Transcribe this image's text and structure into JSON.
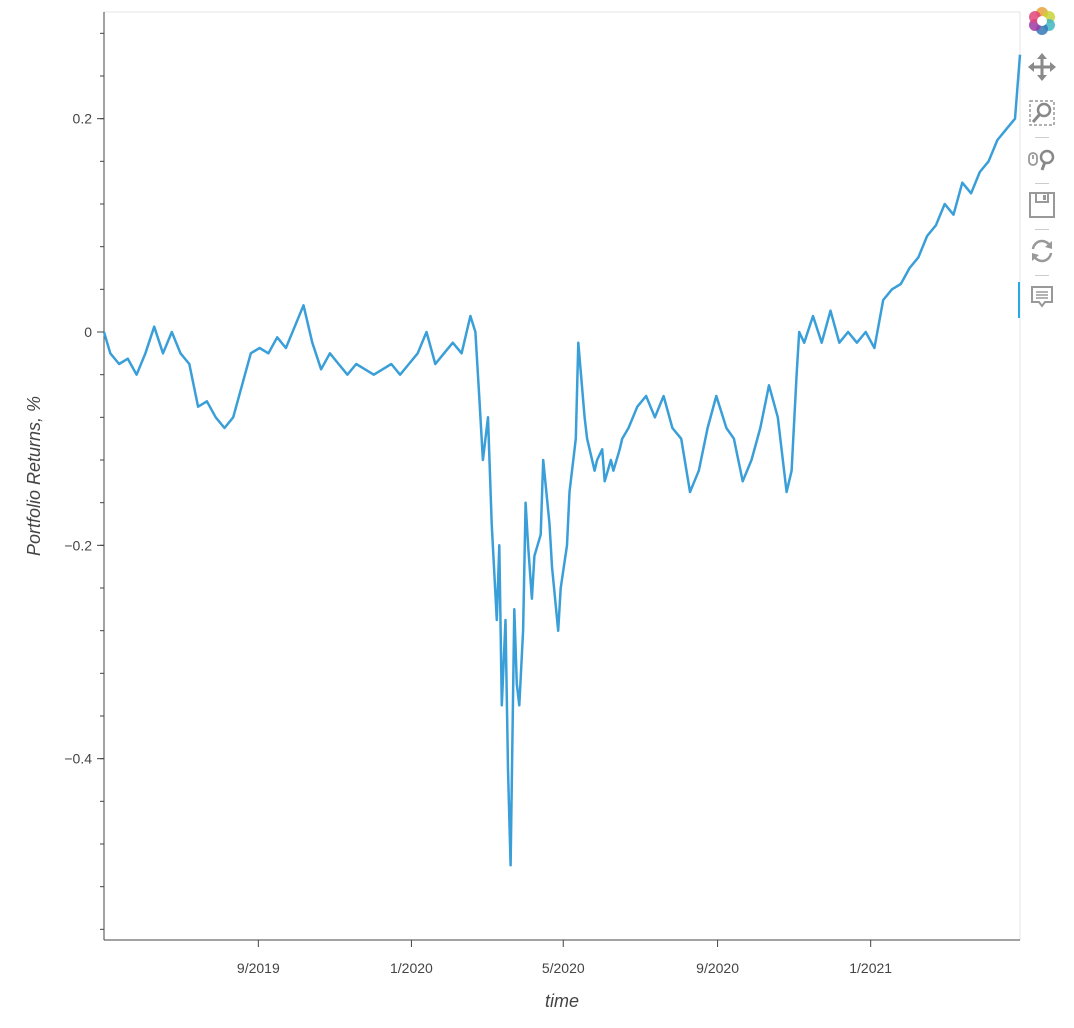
{
  "chart_data": {
    "type": "line",
    "title": "",
    "xlabel": "time",
    "ylabel": "Portfolio Returns, %",
    "x_axis_type": "datetime",
    "xlim": [
      "2019-05-01",
      "2021-04-30"
    ],
    "ylim": [
      -0.57,
      0.3
    ],
    "x_ticks": [
      {
        "date": "2019-09-01",
        "label": "9/2019"
      },
      {
        "date": "2020-01-01",
        "label": "1/2020"
      },
      {
        "date": "2020-05-01",
        "label": "5/2020"
      },
      {
        "date": "2020-09-01",
        "label": "9/2020"
      },
      {
        "date": "2021-01-01",
        "label": "1/2021"
      }
    ],
    "y_ticks": [
      {
        "value": 0.2,
        "label": "0.2"
      },
      {
        "value": 0,
        "label": "0"
      },
      {
        "value": -0.2,
        "label": "−0.2"
      },
      {
        "value": -0.4,
        "label": "−0.4"
      }
    ],
    "y_minor_step": 0.04,
    "grid": false,
    "line_color": "#3a9fd8",
    "series": [
      {
        "x": [
          "2019-05-01",
          "2019-05-06",
          "2019-05-13",
          "2019-05-20",
          "2019-05-27",
          "2019-06-03",
          "2019-06-10",
          "2019-06-17",
          "2019-06-24",
          "2019-07-01",
          "2019-07-08",
          "2019-07-15",
          "2019-07-22",
          "2019-07-29",
          "2019-08-05",
          "2019-08-12",
          "2019-08-19",
          "2019-08-26",
          "2019-09-02",
          "2019-09-09",
          "2019-09-16",
          "2019-09-23",
          "2019-09-30",
          "2019-10-07",
          "2019-10-14",
          "2019-10-21",
          "2019-10-28",
          "2019-11-04",
          "2019-11-11",
          "2019-11-18",
          "2019-11-25",
          "2019-12-02",
          "2019-12-09",
          "2019-12-16",
          "2019-12-23",
          "2019-12-30",
          "2020-01-06",
          "2020-01-13",
          "2020-01-20",
          "2020-01-27",
          "2020-02-03",
          "2020-02-10",
          "2020-02-17",
          "2020-02-21",
          "2020-02-24",
          "2020-02-27",
          "2020-03-02",
          "2020-03-05",
          "2020-03-09",
          "2020-03-11",
          "2020-03-13",
          "2020-03-16",
          "2020-03-18",
          "2020-03-20",
          "2020-03-23",
          "2020-03-25",
          "2020-03-27",
          "2020-03-30",
          "2020-04-01",
          "2020-04-03",
          "2020-04-06",
          "2020-04-08",
          "2020-04-13",
          "2020-04-15",
          "2020-04-20",
          "2020-04-22",
          "2020-04-27",
          "2020-04-29",
          "2020-05-04",
          "2020-05-06",
          "2020-05-11",
          "2020-05-13",
          "2020-05-18",
          "2020-05-20",
          "2020-05-26",
          "2020-05-28",
          "2020-06-01",
          "2020-06-03",
          "2020-06-08",
          "2020-06-10",
          "2020-06-15",
          "2020-06-17",
          "2020-06-22",
          "2020-06-29",
          "2020-07-06",
          "2020-07-13",
          "2020-07-20",
          "2020-07-27",
          "2020-08-03",
          "2020-08-10",
          "2020-08-17",
          "2020-08-24",
          "2020-08-31",
          "2020-09-08",
          "2020-09-14",
          "2020-09-21",
          "2020-09-28",
          "2020-10-05",
          "2020-10-12",
          "2020-10-19",
          "2020-10-26",
          "2020-10-30",
          "2020-11-03",
          "2020-11-05",
          "2020-11-09",
          "2020-11-16",
          "2020-11-23",
          "2020-11-30",
          "2020-12-07",
          "2020-12-14",
          "2020-12-21",
          "2020-12-28",
          "2021-01-04",
          "2021-01-11",
          "2021-01-18",
          "2021-01-25",
          "2021-02-01",
          "2021-02-08",
          "2021-02-15",
          "2021-02-22",
          "2021-03-01",
          "2021-03-08",
          "2021-03-15",
          "2021-03-22",
          "2021-03-29",
          "2021-04-05",
          "2021-04-12",
          "2021-04-19",
          "2021-04-26",
          "2021-04-30"
        ],
        "y": [
          0.0,
          -0.02,
          -0.03,
          -0.025,
          -0.04,
          -0.02,
          0.005,
          -0.02,
          0.0,
          -0.02,
          -0.03,
          -0.07,
          -0.065,
          -0.08,
          -0.09,
          -0.08,
          -0.05,
          -0.02,
          -0.015,
          -0.02,
          -0.005,
          -0.015,
          0.005,
          0.025,
          -0.01,
          -0.035,
          -0.02,
          -0.03,
          -0.04,
          -0.03,
          -0.035,
          -0.04,
          -0.035,
          -0.03,
          -0.04,
          -0.03,
          -0.02,
          0.0,
          -0.03,
          -0.02,
          -0.01,
          -0.02,
          0.015,
          0.0,
          -0.06,
          -0.12,
          -0.08,
          -0.18,
          -0.27,
          -0.2,
          -0.35,
          -0.27,
          -0.41,
          -0.5,
          -0.26,
          -0.33,
          -0.35,
          -0.28,
          -0.16,
          -0.2,
          -0.25,
          -0.21,
          -0.19,
          -0.12,
          -0.18,
          -0.22,
          -0.28,
          -0.24,
          -0.2,
          -0.15,
          -0.1,
          -0.01,
          -0.08,
          -0.1,
          -0.13,
          -0.12,
          -0.11,
          -0.14,
          -0.12,
          -0.13,
          -0.11,
          -0.1,
          -0.09,
          -0.07,
          -0.06,
          -0.08,
          -0.06,
          -0.09,
          -0.1,
          -0.15,
          -0.13,
          -0.09,
          -0.06,
          -0.09,
          -0.1,
          -0.14,
          -0.12,
          -0.09,
          -0.05,
          -0.08,
          -0.15,
          -0.13,
          -0.04,
          0.0,
          -0.01,
          0.015,
          -0.01,
          0.02,
          -0.01,
          0.0,
          -0.01,
          0.0,
          -0.015,
          0.03,
          0.04,
          0.045,
          0.06,
          0.07,
          0.09,
          0.1,
          0.12,
          0.11,
          0.14,
          0.13,
          0.15,
          0.16,
          0.18,
          0.19,
          0.2,
          0.26
        ]
      }
    ]
  },
  "toolbar": {
    "tools": [
      "bokeh-logo-icon",
      "pan-icon",
      "box-zoom-icon",
      "wheel-zoom-icon",
      "save-icon",
      "reset-icon",
      "hover-icon"
    ]
  }
}
